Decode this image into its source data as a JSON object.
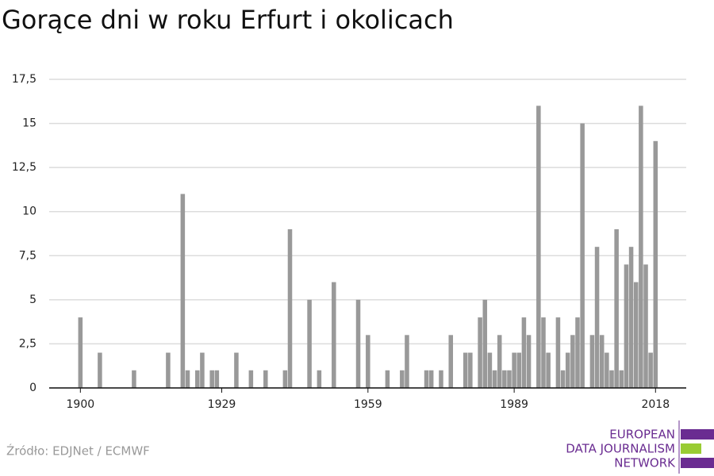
{
  "chart_data": {
    "type": "bar",
    "title": "Gorące dni w roku Erfurt i okolicach",
    "source": "Źródło: EDJNet / ECMWF",
    "logo": [
      "EUROPEAN",
      "DATA JOURNALISM",
      "NETWORK"
    ],
    "color": "#999999",
    "x": [
      1900,
      1904,
      1911,
      1918,
      1921,
      1922,
      1924,
      1925,
      1927,
      1928,
      1932,
      1935,
      1938,
      1942,
      1943,
      1947,
      1949,
      1952,
      1957,
      1959,
      1963,
      1966,
      1967,
      1971,
      1972,
      1974,
      1976,
      1979,
      1980,
      1982,
      1983,
      1984,
      1985,
      1986,
      1987,
      1988,
      1989,
      1990,
      1991,
      1992,
      1994,
      1995,
      1996,
      1998,
      1999,
      2000,
      2001,
      2002,
      2003,
      2005,
      2006,
      2007,
      2008,
      2009,
      2010,
      2011,
      2012,
      2013,
      2014,
      2015,
      2016,
      2017,
      2018
    ],
    "values": [
      4,
      2,
      1,
      2,
      11,
      1,
      1,
      2,
      1,
      1,
      2,
      1,
      1,
      1,
      9,
      5,
      1,
      6,
      5,
      3,
      1,
      1,
      3,
      1,
      1,
      1,
      3,
      2,
      2,
      4,
      5,
      2,
      1,
      3,
      1,
      1,
      2,
      2,
      4,
      3,
      16,
      4,
      2,
      4,
      1,
      2,
      3,
      4,
      15,
      3,
      8,
      3,
      2,
      1,
      9,
      1,
      7,
      8,
      6,
      16,
      7,
      2,
      14
    ],
    "xlim": [
      1893.6,
      2024.3
    ],
    "xticks": [
      1900,
      1929,
      1959,
      1989,
      2018
    ],
    "ylim": [
      0,
      17.5
    ],
    "yticks": [
      0,
      {
        "value": 2.5,
        "label": "2,5"
      },
      5,
      {
        "value": 7.5,
        "label": "7,5"
      },
      10,
      {
        "value": 12.5,
        "label": "12,5"
      },
      15,
      {
        "value": 17.5,
        "label": "17,5"
      }
    ],
    "grid": true
  }
}
